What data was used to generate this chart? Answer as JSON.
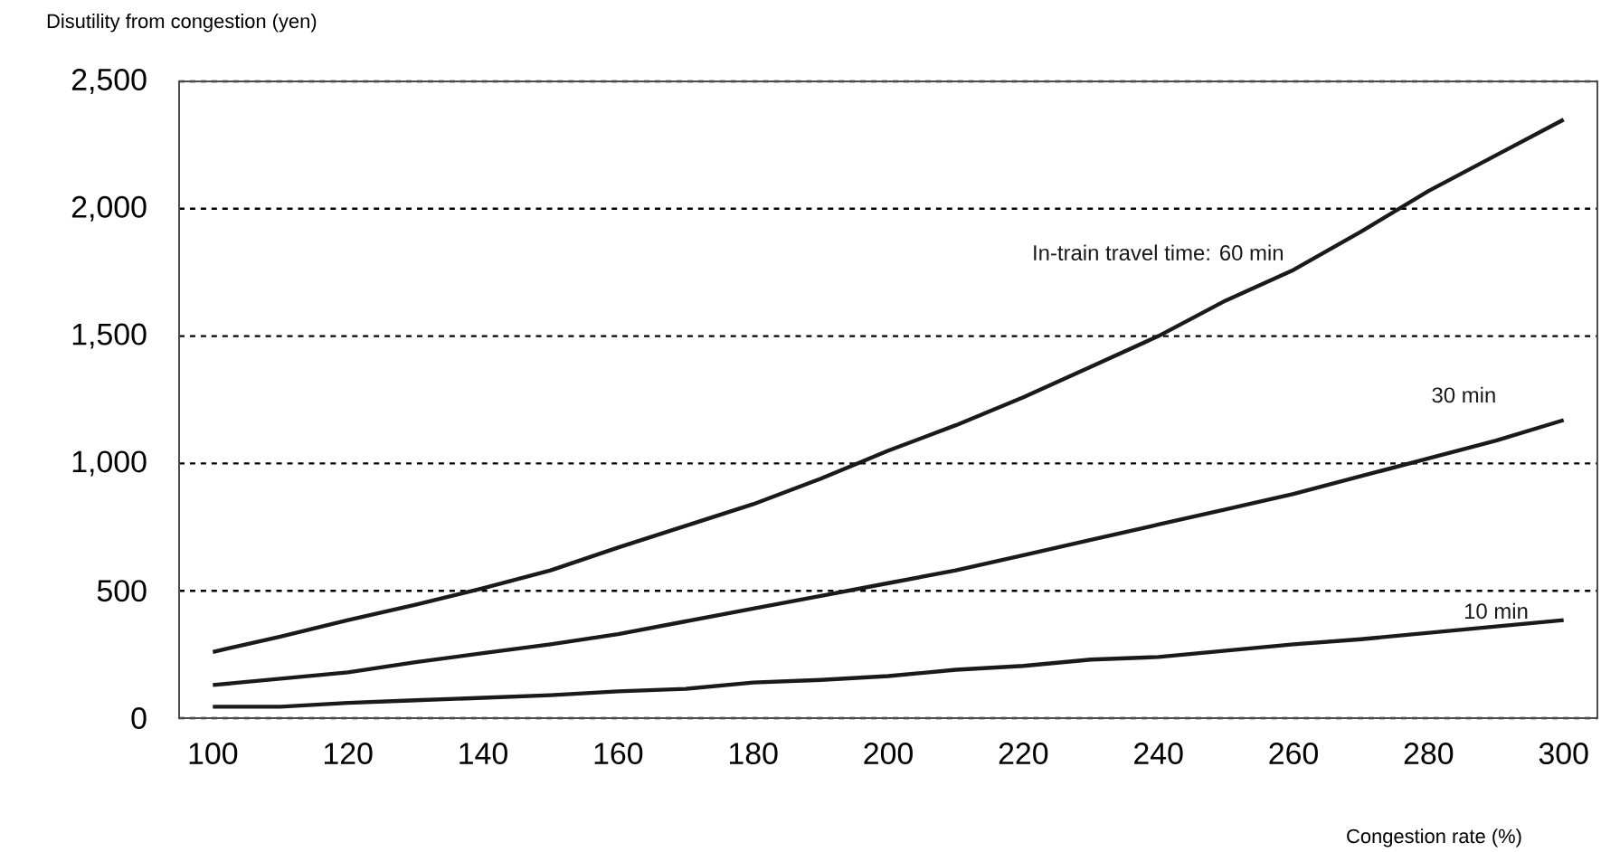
{
  "chart_data": {
    "type": "line",
    "xlabel": "Congestion rate (%)",
    "ylabel": "Disutility from congestion (yen)",
    "x": [
      100,
      110,
      120,
      130,
      140,
      150,
      160,
      170,
      180,
      190,
      200,
      210,
      220,
      230,
      240,
      250,
      260,
      270,
      280,
      290,
      300
    ],
    "series": [
      {
        "name": "In-train travel time: 60 min",
        "color": "#1a1a1a",
        "values": [
          260,
          320,
          385,
          445,
          510,
          580,
          670,
          755,
          840,
          940,
          1050,
          1150,
          1260,
          1380,
          1500,
          1640,
          1760,
          1910,
          2070,
          2210,
          2350
        ]
      },
      {
        "name": "30 min",
        "color": "#1a1a1a",
        "values": [
          130,
          155,
          180,
          220,
          255,
          290,
          330,
          380,
          430,
          480,
          530,
          580,
          640,
          700,
          760,
          820,
          880,
          950,
          1020,
          1090,
          1170
        ]
      },
      {
        "name": "10 min",
        "color": "#1a1a1a",
        "values": [
          45,
          45,
          60,
          70,
          80,
          90,
          105,
          115,
          140,
          150,
          165,
          190,
          205,
          230,
          240,
          265,
          290,
          310,
          335,
          360,
          385
        ]
      }
    ],
    "xlim": [
      95,
      305
    ],
    "ylim": [
      0,
      2500
    ],
    "xticks": [
      100,
      120,
      140,
      160,
      180,
      200,
      220,
      240,
      260,
      280,
      300
    ],
    "yticks": [
      0,
      {
        "value": 500,
        "label": "500"
      },
      {
        "value": 1000,
        "label": "1,000"
      },
      {
        "value": 1500,
        "label": "1,500"
      },
      {
        "value": 2000,
        "label": "2,000"
      },
      {
        "value": 2500,
        "label": "2,500"
      }
    ],
    "grid": "y",
    "legend": false,
    "marker": "none",
    "line_style": "solid"
  }
}
